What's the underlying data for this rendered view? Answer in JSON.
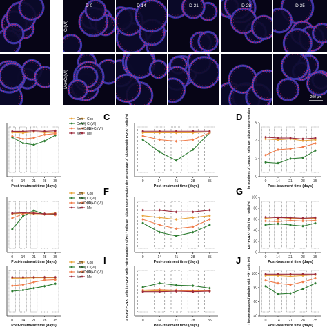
{
  "figure": {
    "micro": {
      "days": [
        "D 0",
        "D 14",
        "D 21",
        "D 28",
        "D 35"
      ],
      "rows": [
        "Cr(VI)",
        "Me+Cr(VI)"
      ],
      "scale_bar": "200 μm"
    },
    "panel_labels": [
      "C",
      "D",
      "F",
      "G",
      "I",
      "J"
    ],
    "legend": [
      "Con",
      "Cr(VI)",
      "Me+Cr(VI)",
      "Me"
    ],
    "colors": {
      "Con": "#e8a33a",
      "Cr(VI)": "#2e7d32",
      "Me+Cr(VI)": "#f07c4a",
      "Me": "#9c2b3c"
    },
    "xlabel": "Post-treatment time (days)"
  },
  "chart_data": [
    {
      "panel": "",
      "type": "line",
      "x": [
        0,
        14,
        21,
        28,
        35
      ],
      "xlabel": "Post-treatment time (days)",
      "ylabel": "",
      "ylim": [
        0,
        10
      ],
      "yticks": [],
      "series": [
        {
          "name": "Con",
          "values": [
            8.2,
            8.1,
            8.3,
            8.2,
            8.2
          ]
        },
        {
          "name": "Cr(VI)",
          "values": [
            7.3,
            6.2,
            5.9,
            6.6,
            7.7
          ]
        },
        {
          "name": "Me+Cr(VI)",
          "values": [
            7.5,
            7.0,
            7.2,
            7.8,
            8.0
          ]
        },
        {
          "name": "Me",
          "values": [
            8.4,
            8.4,
            8.5,
            8.4,
            8.5
          ]
        }
      ]
    },
    {
      "panel": "C",
      "type": "line",
      "x": [
        0,
        14,
        21,
        28,
        35
      ],
      "xlabel": "Post-treatment time (days)",
      "ylabel": "The percentage of tubules with PCNA⁺ cells (%)",
      "ylim": [
        40,
        110
      ],
      "yticks": [],
      "series": [
        {
          "name": "Con",
          "values": [
            97,
            97,
            97,
            97,
            98
          ]
        },
        {
          "name": "Cr(VI)",
          "values": [
            88,
            72,
            61,
            75,
            97
          ]
        },
        {
          "name": "Me+Cr(VI)",
          "values": [
            93,
            88,
            86,
            88,
            97
          ]
        },
        {
          "name": "Me",
          "values": [
            99,
            99,
            99,
            99,
            99
          ]
        }
      ]
    },
    {
      "panel": "D",
      "type": "line",
      "x": [
        0,
        14,
        21,
        28,
        35
      ],
      "xlabel": "Post-treatment time (days)",
      "ylabel": "The numbers of LIN28A⁺ cells per tubule cross-section",
      "ylim": [
        0,
        6
      ],
      "yticks": [
        "0",
        "2",
        "4",
        "6"
      ],
      "series": [
        {
          "name": "Con",
          "values": [
            4.2,
            4.1,
            4.2,
            4.0,
            4.1
          ]
        },
        {
          "name": "Cr(VI)",
          "values": [
            1.6,
            1.5,
            2.0,
            2.1,
            2.9
          ]
        },
        {
          "name": "Me+Cr(VI)",
          "values": [
            2.4,
            3.0,
            3.1,
            3.3,
            3.7
          ]
        },
        {
          "name": "Me",
          "values": [
            4.4,
            4.3,
            4.3,
            4.2,
            4.3
          ]
        }
      ]
    },
    {
      "panel": "",
      "type": "line",
      "x": [
        0,
        14,
        21,
        28,
        35
      ],
      "xlabel": "Post-treatment time (days)",
      "ylabel": "",
      "ylim": [
        0,
        10
      ],
      "yticks": [],
      "series": [
        {
          "name": "Con",
          "values": [
            7.0,
            7.1,
            7.0,
            7.0,
            7.1
          ]
        },
        {
          "name": "Cr(VI)",
          "values": [
            4.2,
            6.6,
            7.6,
            6.9,
            6.9
          ]
        },
        {
          "name": "Me+Cr(VI)",
          "values": [
            6.2,
            7.0,
            7.2,
            6.9,
            6.8
          ]
        },
        {
          "name": "Me",
          "values": [
            7.1,
            7.2,
            7.1,
            7.0,
            7.0
          ]
        }
      ]
    },
    {
      "panel": "F",
      "type": "line",
      "x": [
        0,
        14,
        21,
        28,
        35
      ],
      "xlabel": "Post-treatment time (days)",
      "ylabel": "The numbers of KIT⁺ cells per tubule cross-section",
      "ylim": [
        0,
        30
      ],
      "yticks": [],
      "series": [
        {
          "name": "Con",
          "values": [
            20,
            19,
            18,
            19,
            20
          ]
        },
        {
          "name": "Cr(VI)",
          "values": [
            16,
            11,
            9,
            11,
            15
          ]
        },
        {
          "name": "Me+Cr(VI)",
          "values": [
            18,
            15,
            13,
            14,
            18
          ]
        },
        {
          "name": "Me",
          "values": [
            23,
            23,
            22,
            22,
            23
          ]
        }
      ]
    },
    {
      "panel": "G",
      "type": "line",
      "x": [
        0,
        14,
        21,
        28,
        35
      ],
      "xlabel": "Post-treatment time (days)",
      "ylabel": "KIT⁺PCNA⁺ cells / KIT⁺ cells (%)",
      "ylim": [
        0,
        100
      ],
      "yticks": [
        "0",
        "20",
        "40",
        "60",
        "80",
        "100"
      ],
      "series": [
        {
          "name": "Con",
          "values": [
            62,
            60,
            62,
            61,
            62
          ]
        },
        {
          "name": "Cr(VI)",
          "values": [
            50,
            52,
            50,
            48,
            53
          ]
        },
        {
          "name": "Me+Cr(VI)",
          "values": [
            57,
            56,
            58,
            57,
            58
          ]
        },
        {
          "name": "Me",
          "values": [
            64,
            63,
            63,
            62,
            63
          ]
        }
      ]
    },
    {
      "panel": "",
      "type": "line",
      "x": [
        0,
        14,
        21,
        28,
        35
      ],
      "xlabel": "Post-treatment time (days)",
      "ylabel": "",
      "ylim": [
        0,
        10
      ],
      "yticks": [],
      "series": [
        {
          "name": "Con",
          "values": [
            7.6,
            7.6,
            7.7,
            7.7,
            7.7
          ]
        },
        {
          "name": "Cr(VI)",
          "values": [
            5.0,
            5.2,
            5.6,
            6.0,
            6.5
          ]
        },
        {
          "name": "Me+Cr(VI)",
          "values": [
            6.1,
            6.3,
            6.8,
            7.2,
            7.3
          ]
        },
        {
          "name": "Me",
          "values": [
            7.8,
            7.8,
            7.8,
            7.8,
            7.8
          ]
        }
      ]
    },
    {
      "panel": "I",
      "type": "line",
      "x": [
        0,
        14,
        21,
        28,
        35
      ],
      "xlabel": "Post-treatment time (days)",
      "ylabel": "SYCP3⁺PCNA⁺ cells / SYCP3⁺ cells (%)",
      "ylim": [
        0,
        100
      ],
      "yticks": [],
      "series": [
        {
          "name": "Con",
          "values": [
            50,
            51,
            50,
            51,
            50
          ]
        },
        {
          "name": "Cr(VI)",
          "values": [
            58,
            66,
            62,
            61,
            56
          ]
        },
        {
          "name": "Me+Cr(VI)",
          "values": [
            52,
            53,
            52,
            50,
            51
          ]
        },
        {
          "name": "Me",
          "values": [
            49,
            49,
            50,
            49,
            50
          ]
        }
      ]
    },
    {
      "panel": "J",
      "type": "line",
      "x": [
        0,
        14,
        21,
        28,
        35
      ],
      "xlabel": "Post-treatment time (days)",
      "ylabel": "The percentage of tubules with Ptk⁺ cells (%)",
      "ylim": [
        40,
        110
      ],
      "yticks": [
        "40",
        "60",
        "80",
        "100"
      ],
      "series": [
        {
          "name": "Con",
          "values": [
            97,
            97,
            96,
            97,
            98
          ]
        },
        {
          "name": "Cr(VI)",
          "values": [
            82,
            71,
            72,
            78,
            86
          ]
        },
        {
          "name": "Me+Cr(VI)",
          "values": [
            90,
            86,
            84,
            88,
            93
          ]
        },
        {
          "name": "Me",
          "values": [
            99,
            99,
            99,
            99,
            99
          ]
        }
      ]
    }
  ]
}
